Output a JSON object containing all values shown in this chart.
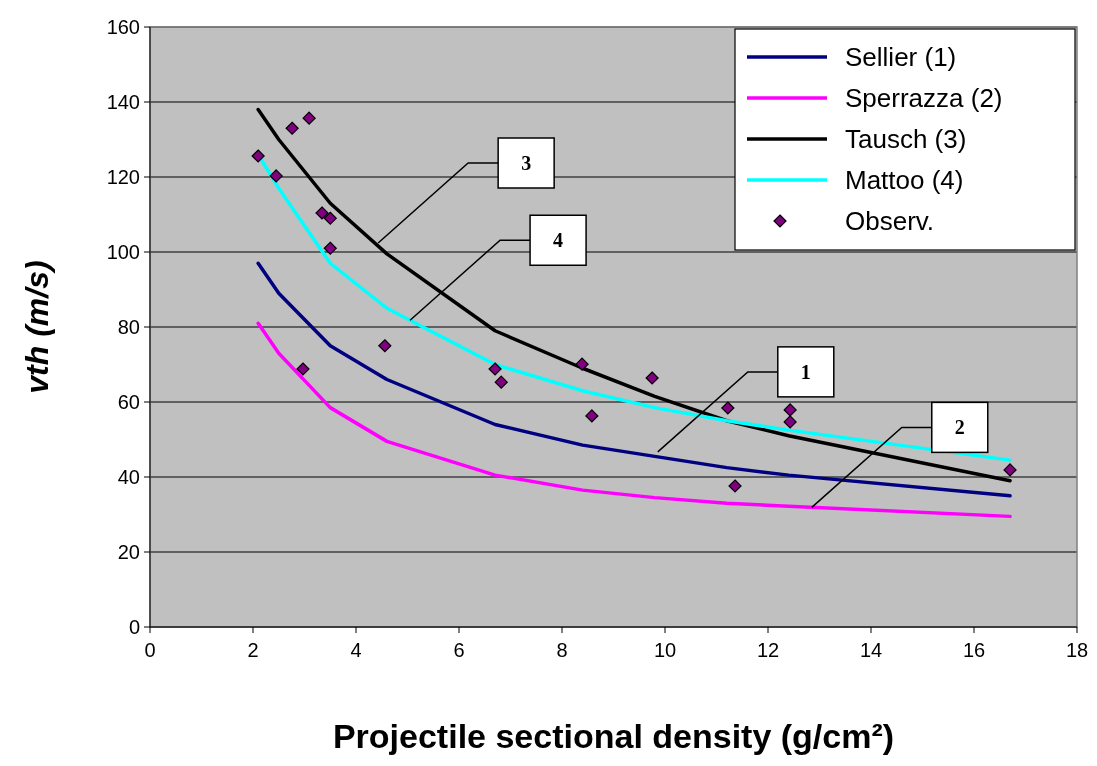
{
  "chart_data": {
    "type": "line",
    "xlabel": "Projectile sectional density (g/cm²)",
    "ylabel": "vth (m/s)",
    "xlim": [
      0,
      18
    ],
    "xticks": [
      0,
      2,
      4,
      6,
      8,
      10,
      12,
      14,
      16,
      18
    ],
    "ylim": [
      0,
      160
    ],
    "yticks": [
      0,
      20,
      40,
      60,
      80,
      100,
      120,
      140,
      160
    ],
    "grid": "y",
    "legend": "top right",
    "series": [
      {
        "name": "Sellier (1)",
        "color": "#000080",
        "type": "line",
        "x": [
          2.1,
          2.5,
          3.5,
          4.6,
          6.7,
          8.4,
          9.8,
          11.2,
          12.4,
          16.7
        ],
        "values": [
          97,
          89,
          75,
          66,
          54,
          48.5,
          45.5,
          42.5,
          40.5,
          35
        ]
      },
      {
        "name": "Sperrazza (2)",
        "color": "#ff00ff",
        "type": "line",
        "x": [
          2.1,
          2.5,
          3.5,
          4.6,
          6.7,
          8.4,
          9.8,
          11.2,
          12.4,
          16.7
        ],
        "values": [
          81,
          73,
          58.5,
          49.5,
          40.5,
          36.5,
          34.5,
          33,
          32.2,
          29.5
        ]
      },
      {
        "name": "Tausch (3)",
        "color": "#000000",
        "type": "line",
        "x": [
          2.1,
          2.5,
          3.5,
          4.6,
          6.7,
          8.4,
          9.8,
          11.2,
          12.4,
          16.7
        ],
        "values": [
          138,
          130,
          113,
          99.5,
          79,
          69,
          61.5,
          55,
          51,
          39
        ]
      },
      {
        "name": "Mattoo (4)",
        "color": "#00ffff",
        "type": "line",
        "x": [
          2.1,
          2.5,
          3.5,
          4.6,
          6.7,
          8.4,
          9.8,
          11.2,
          12.4,
          16.7
        ],
        "values": [
          126,
          117,
          97,
          85,
          70,
          63,
          58.5,
          55,
          52.5,
          44.5
        ]
      },
      {
        "name": "Observ.",
        "color": "#800080",
        "type": "scatter",
        "marker": "diamond",
        "x": [
          2.1,
          2.45,
          2.76,
          3.09,
          2.97,
          3.34,
          3.5,
          3.5,
          4.56,
          6.7,
          6.82,
          8.39,
          8.58,
          9.75,
          11.22,
          11.36,
          12.43,
          12.43,
          16.7
        ],
        "values": [
          125.6,
          120.3,
          133,
          135.7,
          68.8,
          110.4,
          109,
          101,
          75,
          68.8,
          65.3,
          70.1,
          56.3,
          66.4,
          58.4,
          37.6,
          57.9,
          54.7,
          41.9
        ]
      }
    ],
    "annotations": [
      {
        "text": "3",
        "x": 4.43,
        "y": 102.4
      },
      {
        "text": "4",
        "x": 5.05,
        "y": 81.8
      },
      {
        "text": "1",
        "x": 9.86,
        "y": 46.7
      },
      {
        "text": "2",
        "x": 12.85,
        "y": 31.9
      }
    ]
  }
}
